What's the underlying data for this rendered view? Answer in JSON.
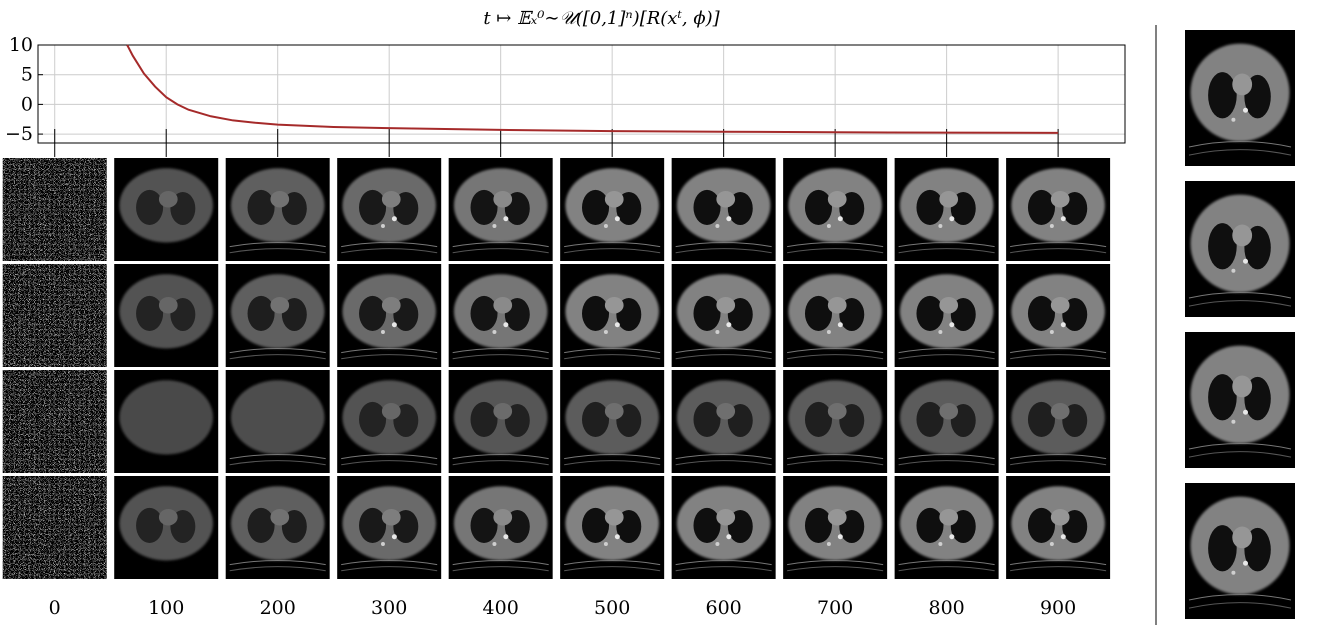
{
  "chart_data": {
    "type": "line",
    "title": "t ↦ 𝔼ₓ⁰∼𝒰([0,1]ⁿ)[R(xᵗ, ϕ)]",
    "xlabel": "",
    "ylabel": "",
    "xlim": [
      -15,
      960
    ],
    "ylim": [
      -6.5,
      10
    ],
    "grid": true,
    "xticks": [
      0,
      100,
      200,
      300,
      400,
      500,
      600,
      700,
      800,
      900
    ],
    "yticks": [
      -5,
      0,
      5,
      10
    ],
    "xtick_labels": [
      "0",
      "100",
      "200",
      "300",
      "400",
      "500",
      "600",
      "700",
      "800",
      "900"
    ],
    "ytick_labels": [
      "−5",
      "0",
      "5",
      "10"
    ],
    "series": [
      {
        "color": "#a52a2a",
        "x": [
          65,
          70,
          80,
          90,
          100,
          110,
          120,
          140,
          160,
          180,
          200,
          250,
          300,
          400,
          500,
          600,
          700,
          800,
          900
        ],
        "y": [
          10,
          8.2,
          5.2,
          3.0,
          1.2,
          0.0,
          -0.9,
          -2.0,
          -2.7,
          -3.1,
          -3.4,
          -3.8,
          -4.0,
          -4.3,
          -4.5,
          -4.6,
          -4.7,
          -4.75,
          -4.8
        ]
      }
    ]
  },
  "image_grid": {
    "columns": [
      0,
      100,
      200,
      300,
      400,
      500,
      600,
      700,
      800,
      900
    ],
    "row_count": 4,
    "cell_content": "ct-slice"
  },
  "reference_images": {
    "count": 4,
    "cell_content": "ct-slice"
  },
  "colors": {
    "line": "#a52a2a",
    "grid": "#cccccc",
    "axis": "#000000",
    "panel": "#000000"
  }
}
